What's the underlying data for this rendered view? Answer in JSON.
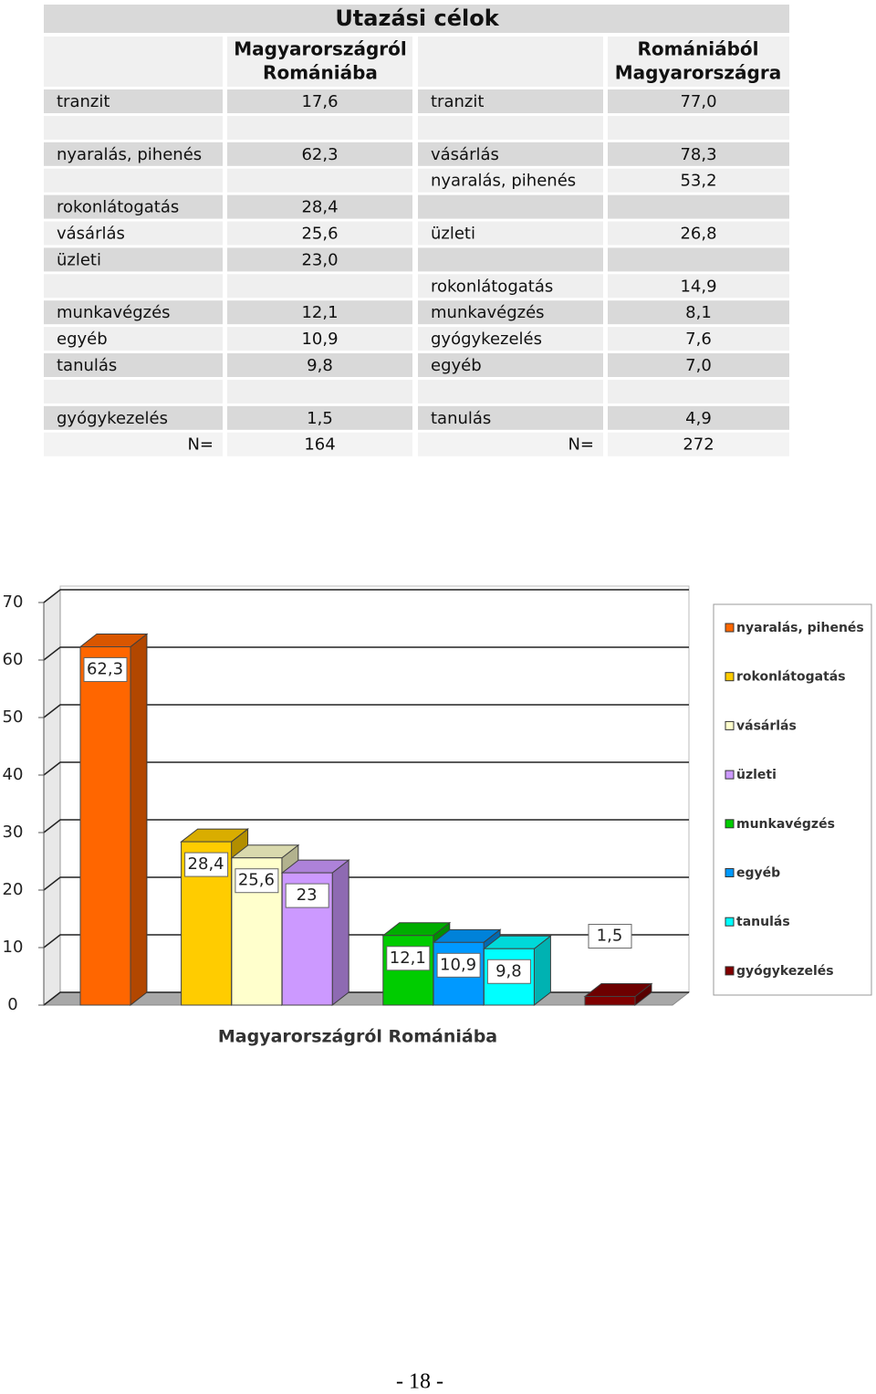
{
  "table": {
    "title": "Utazási célok",
    "headers": [
      [
        "Magyarországról",
        "Romániába"
      ],
      [
        "Romániából",
        "Magyarországra"
      ]
    ],
    "rows": [
      [
        "tranzit",
        "17,6",
        "tranzit",
        "77,0"
      ],
      [
        null,
        null,
        null,
        null
      ],
      [
        "nyaralás, pihenés",
        "62,3",
        "vásárlás",
        "78,3"
      ],
      [
        null,
        null,
        "nyaralás, pihenés",
        "53,2"
      ],
      [
        "rokonlátogatás",
        "28,4",
        null,
        null
      ],
      [
        "vásárlás",
        "25,6",
        "üzleti",
        "26,8"
      ],
      [
        "üzleti",
        "23,0",
        null,
        null
      ],
      [
        null,
        null,
        "rokonlátogatás",
        "14,9"
      ],
      [
        "munkavégzés",
        "12,1",
        "munkavégzés",
        "8,1"
      ],
      [
        "egyéb",
        "10,9",
        "gyógykezelés",
        "7,6"
      ],
      [
        "tanulás",
        "9,8",
        "egyéb",
        "7,0"
      ],
      [
        null,
        null,
        null,
        null
      ],
      [
        "gyógykezelés",
        "1,5",
        "tanulás",
        "4,9"
      ],
      [
        "N=",
        "164",
        "N=",
        "272"
      ]
    ]
  },
  "chart_data": {
    "type": "bar",
    "x_label": "Magyarországról Romániába",
    "categories": [
      "nyaralás, pihenés",
      "rokonlátogatás",
      "vásárlás",
      "üzleti",
      "munkavégzés",
      "egyéb",
      "tanulás",
      "gyógykezelés"
    ],
    "values": [
      62.3,
      28.4,
      25.6,
      23,
      12.1,
      10.9,
      9.8,
      1.5
    ],
    "value_labels": [
      "62,3",
      "28,4",
      "25,6",
      "23",
      "12,1",
      "10,9",
      "9,8",
      "1,5"
    ],
    "colors": [
      "#ff6600",
      "#ffcc00",
      "#ffffcc",
      "#cc99ff",
      "#00cc00",
      "#0099ff",
      "#00ffff",
      "#800000"
    ],
    "ylim": [
      0,
      70
    ],
    "yticks": [
      0,
      10,
      20,
      30,
      40,
      50,
      60,
      70
    ],
    "grid": true,
    "legend": "right"
  },
  "footer": "- 18 -"
}
